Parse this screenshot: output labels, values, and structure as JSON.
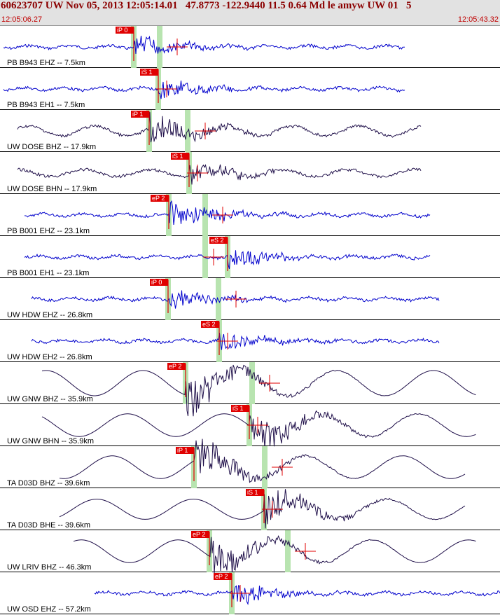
{
  "header": {
    "title": "60623707 UW Nov 05, 2013 12:05:14.01   47.8773 -122.9440 11.5 0.64 Md le amyw UW 01   5",
    "time_start": "12:05:06.27",
    "time_end": "12:05:43.32"
  },
  "colors": {
    "blue": "#0000cc",
    "dark": "#20104a",
    "pick": "#e00000",
    "window": "#b8e4b0"
  },
  "channels": [
    {
      "label": "PB B943 EHZ -- 7.5km",
      "pick": "iP 0",
      "color": "blue"
    },
    {
      "label": "PB B943 EH1 -- 7.5km",
      "pick": "iS 1",
      "color": "blue"
    },
    {
      "label": "UW DOSE BHZ -- 17.9km",
      "pick": "iP 1",
      "color": "dark"
    },
    {
      "label": "UW DOSE BHN -- 17.9km",
      "pick": "iS 1",
      "color": "dark"
    },
    {
      "label": "PB B001 EHZ -- 23.1km",
      "pick": "eP 2",
      "color": "blue"
    },
    {
      "label": "PB B001 EH1 -- 23.1km",
      "pick": "eS 2",
      "color": "blue"
    },
    {
      "label": "UW HDW EHZ -- 26.8km",
      "pick": "iP 0",
      "color": "blue"
    },
    {
      "label": "UW HDW EH2 -- 26.8km",
      "pick": "eS 2",
      "color": "blue"
    },
    {
      "label": "UW GNW BHZ -- 35.9km",
      "pick": "eP 2",
      "color": "dark"
    },
    {
      "label": "UW GNW BHN -- 35.9km",
      "pick": "iS 1",
      "color": "dark"
    },
    {
      "label": "TA D03D BHZ -- 39.6km",
      "pick": "iP 1",
      "color": "dark"
    },
    {
      "label": "TA D03D BHE -- 39.6km",
      "pick": "iS 1",
      "color": "dark"
    },
    {
      "label": "UW LRIV BHZ -- 46.3km",
      "pick": "eP 2",
      "color": "dark"
    },
    {
      "label": "UW OSD EHZ -- 57.2km",
      "pick": "eP 2",
      "color": "blue"
    }
  ]
}
